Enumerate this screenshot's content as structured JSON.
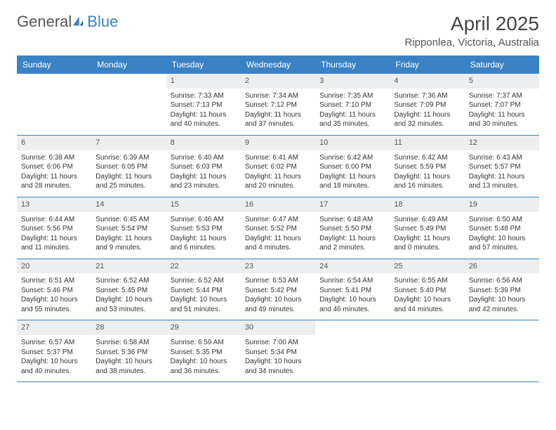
{
  "brand": {
    "part1": "General",
    "part2": "Blue"
  },
  "title": "April 2025",
  "location": "Ripponlea, Victoria, Australia",
  "colors": {
    "header_bg": "#3b82c4",
    "daynum_bg": "#eceeef",
    "text": "#333333",
    "title_text": "#444444"
  },
  "weekdays": [
    "Sunday",
    "Monday",
    "Tuesday",
    "Wednesday",
    "Thursday",
    "Friday",
    "Saturday"
  ],
  "weeks": [
    [
      {
        "n": "",
        "empty": true
      },
      {
        "n": "",
        "empty": true
      },
      {
        "n": "1",
        "sunrise": "7:33 AM",
        "sunset": "7:13 PM",
        "daylight": "11 hours and 40 minutes."
      },
      {
        "n": "2",
        "sunrise": "7:34 AM",
        "sunset": "7:12 PM",
        "daylight": "11 hours and 37 minutes."
      },
      {
        "n": "3",
        "sunrise": "7:35 AM",
        "sunset": "7:10 PM",
        "daylight": "11 hours and 35 minutes."
      },
      {
        "n": "4",
        "sunrise": "7:36 AM",
        "sunset": "7:09 PM",
        "daylight": "11 hours and 32 minutes."
      },
      {
        "n": "5",
        "sunrise": "7:37 AM",
        "sunset": "7:07 PM",
        "daylight": "11 hours and 30 minutes."
      }
    ],
    [
      {
        "n": "6",
        "sunrise": "6:38 AM",
        "sunset": "6:06 PM",
        "daylight": "11 hours and 28 minutes."
      },
      {
        "n": "7",
        "sunrise": "6:39 AM",
        "sunset": "6:05 PM",
        "daylight": "11 hours and 25 minutes."
      },
      {
        "n": "8",
        "sunrise": "6:40 AM",
        "sunset": "6:03 PM",
        "daylight": "11 hours and 23 minutes."
      },
      {
        "n": "9",
        "sunrise": "6:41 AM",
        "sunset": "6:02 PM",
        "daylight": "11 hours and 20 minutes."
      },
      {
        "n": "10",
        "sunrise": "6:42 AM",
        "sunset": "6:00 PM",
        "daylight": "11 hours and 18 minutes."
      },
      {
        "n": "11",
        "sunrise": "6:42 AM",
        "sunset": "5:59 PM",
        "daylight": "11 hours and 16 minutes."
      },
      {
        "n": "12",
        "sunrise": "6:43 AM",
        "sunset": "5:57 PM",
        "daylight": "11 hours and 13 minutes."
      }
    ],
    [
      {
        "n": "13",
        "sunrise": "6:44 AM",
        "sunset": "5:56 PM",
        "daylight": "11 hours and 11 minutes."
      },
      {
        "n": "14",
        "sunrise": "6:45 AM",
        "sunset": "5:54 PM",
        "daylight": "11 hours and 9 minutes."
      },
      {
        "n": "15",
        "sunrise": "6:46 AM",
        "sunset": "5:53 PM",
        "daylight": "11 hours and 6 minutes."
      },
      {
        "n": "16",
        "sunrise": "6:47 AM",
        "sunset": "5:52 PM",
        "daylight": "11 hours and 4 minutes."
      },
      {
        "n": "17",
        "sunrise": "6:48 AM",
        "sunset": "5:50 PM",
        "daylight": "11 hours and 2 minutes."
      },
      {
        "n": "18",
        "sunrise": "6:49 AM",
        "sunset": "5:49 PM",
        "daylight": "11 hours and 0 minutes."
      },
      {
        "n": "19",
        "sunrise": "6:50 AM",
        "sunset": "5:48 PM",
        "daylight": "10 hours and 57 minutes."
      }
    ],
    [
      {
        "n": "20",
        "sunrise": "6:51 AM",
        "sunset": "5:46 PM",
        "daylight": "10 hours and 55 minutes."
      },
      {
        "n": "21",
        "sunrise": "6:52 AM",
        "sunset": "5:45 PM",
        "daylight": "10 hours and 53 minutes."
      },
      {
        "n": "22",
        "sunrise": "6:52 AM",
        "sunset": "5:44 PM",
        "daylight": "10 hours and 51 minutes."
      },
      {
        "n": "23",
        "sunrise": "6:53 AM",
        "sunset": "5:42 PM",
        "daylight": "10 hours and 49 minutes."
      },
      {
        "n": "24",
        "sunrise": "6:54 AM",
        "sunset": "5:41 PM",
        "daylight": "10 hours and 46 minutes."
      },
      {
        "n": "25",
        "sunrise": "6:55 AM",
        "sunset": "5:40 PM",
        "daylight": "10 hours and 44 minutes."
      },
      {
        "n": "26",
        "sunrise": "6:56 AM",
        "sunset": "5:39 PM",
        "daylight": "10 hours and 42 minutes."
      }
    ],
    [
      {
        "n": "27",
        "sunrise": "6:57 AM",
        "sunset": "5:37 PM",
        "daylight": "10 hours and 40 minutes."
      },
      {
        "n": "28",
        "sunrise": "6:58 AM",
        "sunset": "5:36 PM",
        "daylight": "10 hours and 38 minutes."
      },
      {
        "n": "29",
        "sunrise": "6:59 AM",
        "sunset": "5:35 PM",
        "daylight": "10 hours and 36 minutes."
      },
      {
        "n": "30",
        "sunrise": "7:00 AM",
        "sunset": "5:34 PM",
        "daylight": "10 hours and 34 minutes."
      },
      {
        "n": "",
        "empty": true
      },
      {
        "n": "",
        "empty": true
      },
      {
        "n": "",
        "empty": true
      }
    ]
  ],
  "labels": {
    "sunrise": "Sunrise: ",
    "sunset": "Sunset: ",
    "daylight": "Daylight: "
  }
}
